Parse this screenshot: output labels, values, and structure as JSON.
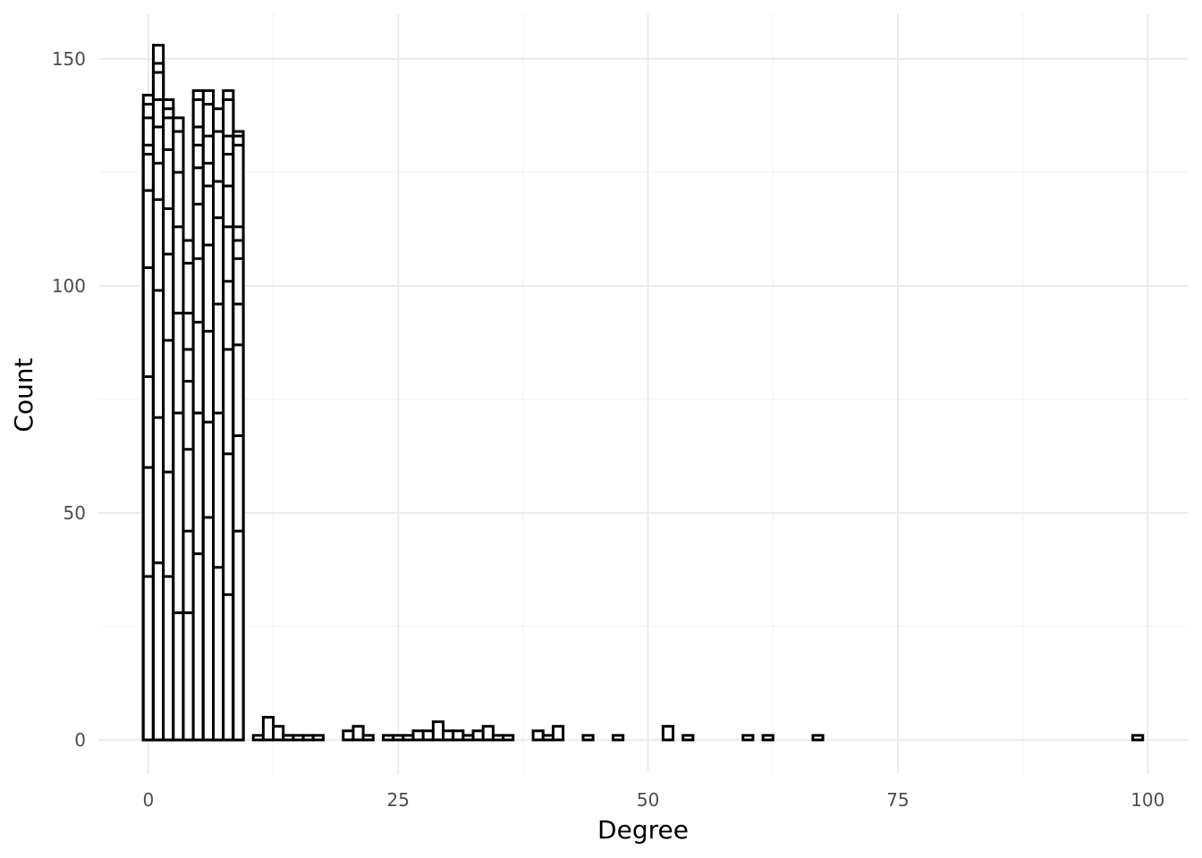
{
  "chart_data": {
    "type": "bar",
    "xlabel": "Degree",
    "ylabel": "Count",
    "xlim": [
      -5,
      104
    ],
    "ylim": [
      -7.5,
      160
    ],
    "x_ticks": [
      0,
      25,
      50,
      75,
      100
    ],
    "x_tick_labels": [
      "0",
      "25",
      "50",
      "75",
      "100"
    ],
    "y_ticks": [
      0,
      50,
      100,
      150
    ],
    "y_tick_labels": [
      "0",
      "50",
      "100",
      "150"
    ],
    "grid": true,
    "bin_width": 1,
    "bar_fill": "#ffffff",
    "bar_outline": "#000000",
    "bars": [
      {
        "x": 0,
        "segments": [
          36,
          60,
          80,
          104,
          121,
          129,
          131,
          137,
          140,
          142
        ]
      },
      {
        "x": 1,
        "segments": [
          39,
          71,
          99,
          119,
          127,
          135,
          141,
          147,
          149,
          153
        ]
      },
      {
        "x": 2,
        "segments": [
          36,
          59,
          88,
          107,
          117,
          130,
          137,
          139,
          141
        ]
      },
      {
        "x": 3,
        "segments": [
          28,
          72,
          94,
          113,
          125,
          134,
          137
        ]
      },
      {
        "x": 4,
        "segments": [
          28,
          46,
          64,
          79,
          86,
          94,
          105,
          110
        ]
      },
      {
        "x": 5,
        "segments": [
          41,
          72,
          92,
          106,
          118,
          126,
          131,
          135,
          141,
          143
        ]
      },
      {
        "x": 6,
        "segments": [
          49,
          70,
          90,
          109,
          122,
          127,
          133,
          140,
          143
        ]
      },
      {
        "x": 7,
        "segments": [
          38,
          72,
          96,
          115,
          123,
          134,
          139
        ]
      },
      {
        "x": 8,
        "segments": [
          32,
          63,
          86,
          101,
          113,
          122,
          129,
          133,
          141,
          143
        ]
      },
      {
        "x": 9,
        "segments": [
          46,
          67,
          87,
          96,
          106,
          110,
          113,
          131,
          133,
          134
        ]
      },
      {
        "x": 11,
        "segments": [
          1
        ]
      },
      {
        "x": 12,
        "segments": [
          5
        ]
      },
      {
        "x": 13,
        "segments": [
          3
        ]
      },
      {
        "x": 14,
        "segments": [
          1
        ]
      },
      {
        "x": 15,
        "segments": [
          1
        ]
      },
      {
        "x": 16,
        "segments": [
          1
        ]
      },
      {
        "x": 17,
        "segments": [
          1
        ]
      },
      {
        "x": 20,
        "segments": [
          2
        ]
      },
      {
        "x": 21,
        "segments": [
          3
        ]
      },
      {
        "x": 22,
        "segments": [
          1
        ]
      },
      {
        "x": 24,
        "segments": [
          1
        ]
      },
      {
        "x": 25,
        "segments": [
          1
        ]
      },
      {
        "x": 26,
        "segments": [
          1
        ]
      },
      {
        "x": 27,
        "segments": [
          2
        ]
      },
      {
        "x": 28,
        "segments": [
          2
        ]
      },
      {
        "x": 29,
        "segments": [
          4
        ]
      },
      {
        "x": 30,
        "segments": [
          2
        ]
      },
      {
        "x": 31,
        "segments": [
          2
        ]
      },
      {
        "x": 32,
        "segments": [
          1
        ]
      },
      {
        "x": 33,
        "segments": [
          2
        ]
      },
      {
        "x": 34,
        "segments": [
          3
        ]
      },
      {
        "x": 35,
        "segments": [
          1
        ]
      },
      {
        "x": 36,
        "segments": [
          1
        ]
      },
      {
        "x": 39,
        "segments": [
          2
        ]
      },
      {
        "x": 40,
        "segments": [
          1
        ]
      },
      {
        "x": 41,
        "segments": [
          3
        ]
      },
      {
        "x": 44,
        "segments": [
          1
        ]
      },
      {
        "x": 47,
        "segments": [
          1
        ]
      },
      {
        "x": 52,
        "segments": [
          3
        ]
      },
      {
        "x": 54,
        "segments": [
          1
        ]
      },
      {
        "x": 60,
        "segments": [
          1
        ]
      },
      {
        "x": 62,
        "segments": [
          1
        ]
      },
      {
        "x": 67,
        "segments": [
          1
        ]
      },
      {
        "x": 99,
        "segments": [
          1
        ]
      }
    ]
  }
}
